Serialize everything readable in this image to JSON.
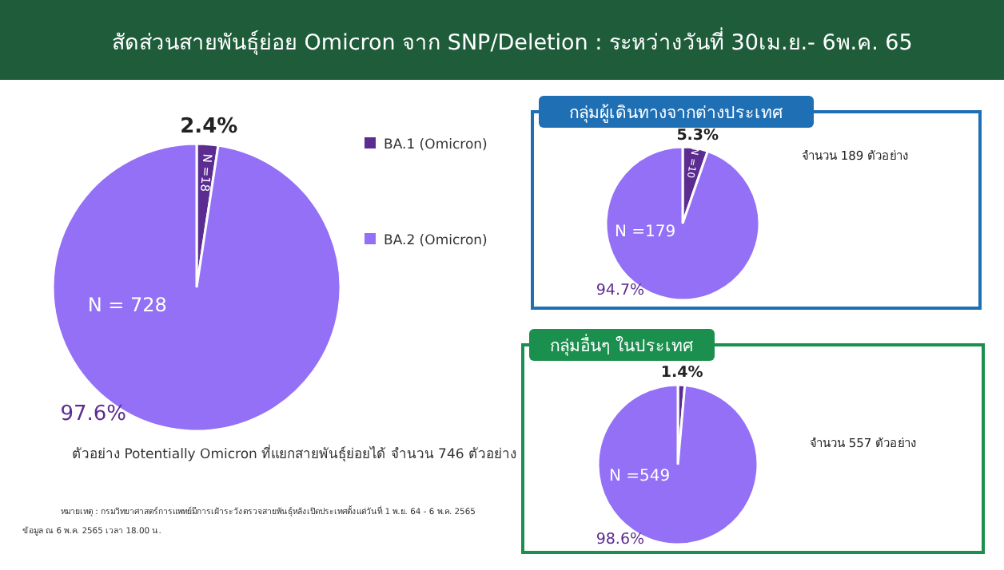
{
  "chart_data": [
    {
      "type": "pie",
      "title": "สัดส่วนสายพันธุ์ย่อย Omicron จาก SNP/Deletion : ระหว่างวันที่ 30เม.ย.- 6พ.ค. 65",
      "categories": [
        "BA.1 (Omicron)",
        "BA.2 (Omicron)"
      ],
      "values": [
        2.4,
        97.6
      ],
      "value_labels": [
        "2.4%",
        "97.6%"
      ],
      "colors": [
        "#5c2d91",
        "#9370f5"
      ],
      "legend": "right",
      "annotations": [
        "N =18",
        "N = 728",
        "ตัวอย่าง Potentially Omicron ที่แยกสายพันธุ์ย่อยได้ จำนวน 746 ตัวอย่าง",
        "หมายเหตุ : กรมวิทยาศาสตร์การแพทย์มีการเฝ้าระวังตรวจสายพันธุ์หลังเปิดประเทศตั้งแต่วันที่ 1 พ.ย. 64 - 6 พ.ค. 2565",
        "ข้อมูล ณ 6 พ.ค. 2565 เวลา 18.00 น."
      ]
    },
    {
      "type": "pie",
      "title": "กลุ่มผู้เดินทางจากต่างประเทศ",
      "categories": [
        null,
        null
      ],
      "values": [
        5.3,
        94.7
      ],
      "value_labels": [
        "5.3%",
        "94.7%"
      ],
      "colors": [
        "#5c2d91",
        "#9370f5"
      ],
      "annotations": [
        "N =10",
        "N =179",
        "จำนวน 189 ตัวอย่าง"
      ]
    },
    {
      "type": "pie",
      "title": "กลุ่มอื่นๆ ในประเทศ",
      "categories": [
        null,
        null
      ],
      "values": [
        1.4,
        98.6
      ],
      "value_labels": [
        "1.4%",
        "98.6%"
      ],
      "colors": [
        "#5c2d91",
        "#9370f5"
      ],
      "annotations": [
        "N =549",
        "จำนวน 557 ตัวอย่าง"
      ]
    }
  ]
}
